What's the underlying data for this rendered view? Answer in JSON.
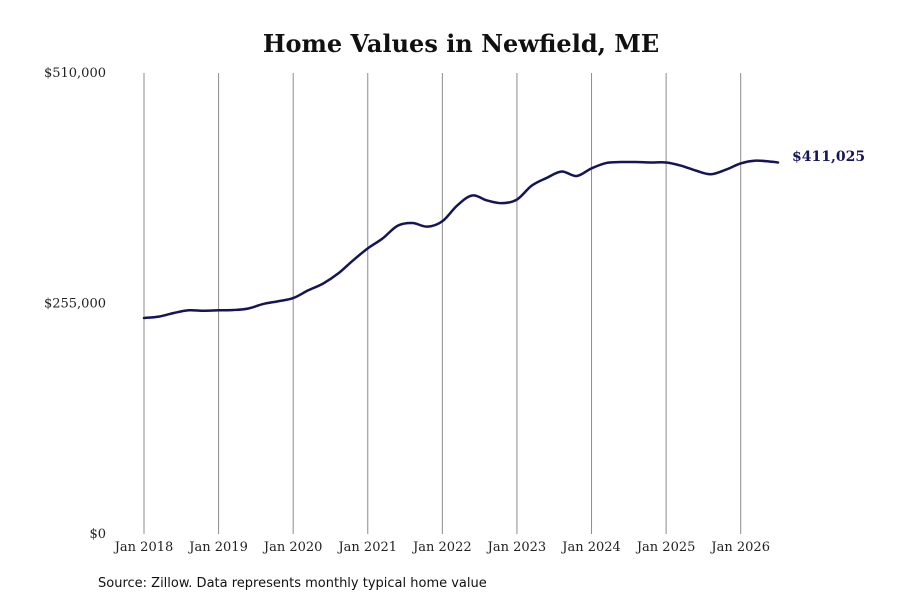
{
  "chart_data": {
    "type": "line",
    "title": "Home Values in Newfield, ME",
    "xlabel": "",
    "ylabel": "",
    "ylim": [
      0,
      510000
    ],
    "y_ticks": [
      {
        "value": 0,
        "label": "$0"
      },
      {
        "value": 255000,
        "label": "$255,000"
      },
      {
        "value": 510000,
        "label": "$510,000"
      }
    ],
    "x_ticks": [
      {
        "value": 2018.0,
        "label": "Jan 2018"
      },
      {
        "value": 2019.0,
        "label": "Jan 2019"
      },
      {
        "value": 2020.0,
        "label": "Jan 2020"
      },
      {
        "value": 2021.0,
        "label": "Jan 2021"
      },
      {
        "value": 2022.0,
        "label": "Jan 2022"
      },
      {
        "value": 2023.0,
        "label": "Jan 2023"
      },
      {
        "value": 2024.0,
        "label": "Jan 2024"
      },
      {
        "value": 2025.0,
        "label": "Jan 2025"
      },
      {
        "value": 2026.0,
        "label": "Jan 2026"
      }
    ],
    "xlim": [
      2018.0,
      2026.5
    ],
    "grid": "vertical",
    "line_color": "#14145a",
    "end_label": "$411,025",
    "source": "Source: Zillow. Data represents monthly typical home value",
    "series": [
      {
        "x": [
          2018.0,
          2018.2,
          2018.4,
          2018.6,
          2018.8,
          2019.0,
          2019.2,
          2019.4,
          2019.6,
          2019.8,
          2020.0,
          2020.2,
          2020.4,
          2020.6,
          2020.8,
          2021.0,
          2021.2,
          2021.4,
          2021.6,
          2021.8,
          2022.0,
          2022.2,
          2022.4,
          2022.6,
          2022.8,
          2023.0,
          2023.2,
          2023.4,
          2023.6,
          2023.8,
          2024.0,
          2024.2,
          2024.4,
          2024.6,
          2024.8,
          2025.0,
          2025.2,
          2025.4,
          2025.6,
          2025.8,
          2026.0,
          2026.2,
          2026.4,
          2026.5
        ],
        "values": [
          239000,
          240500,
          244500,
          247500,
          247000,
          247500,
          247800,
          249500,
          254500,
          257500,
          261000,
          269500,
          277000,
          288000,
          302500,
          316000,
          327000,
          341000,
          344000,
          340000,
          346000,
          363500,
          374500,
          369000,
          366000,
          370000,
          385500,
          394000,
          401000,
          396000,
          404500,
          410500,
          411500,
          411500,
          411000,
          411000,
          407500,
          402000,
          398000,
          403000,
          410000,
          413000,
          412000,
          411025
        ]
      }
    ]
  }
}
